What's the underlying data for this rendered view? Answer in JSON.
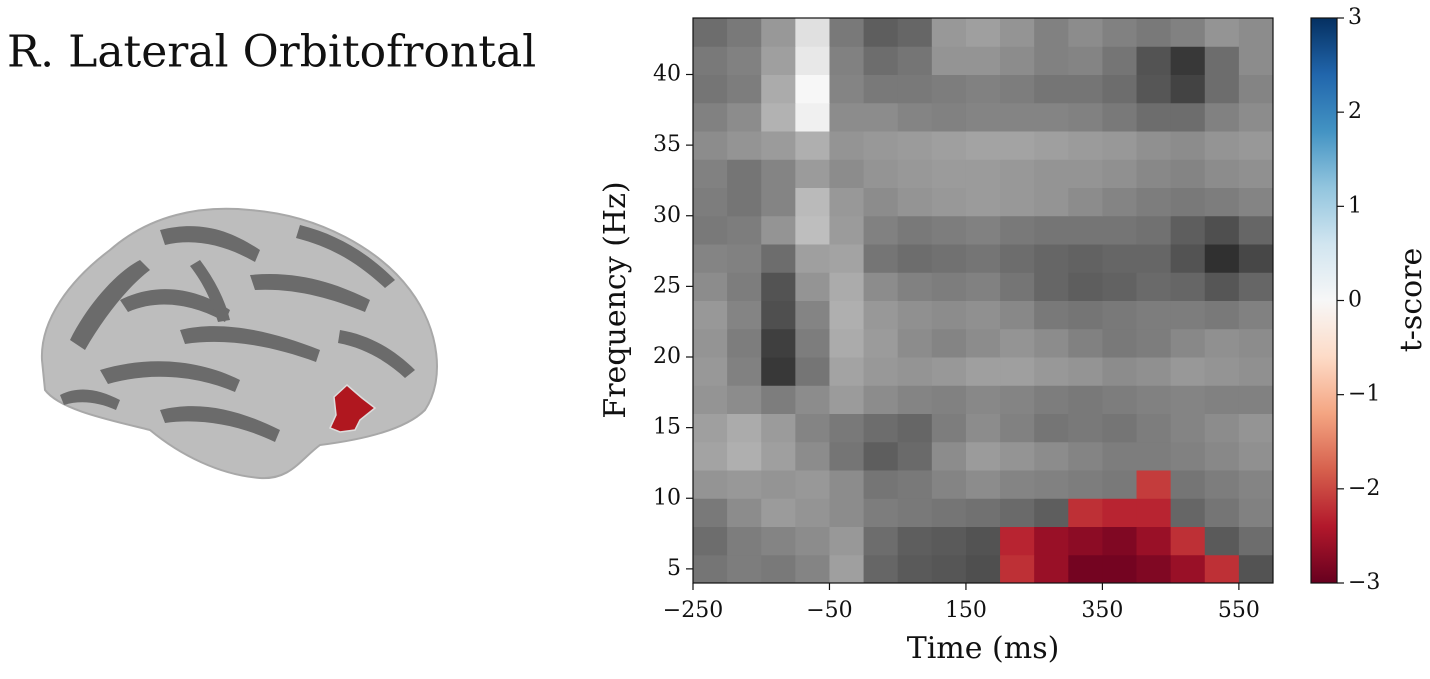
{
  "chart_data": {
    "type": "heatmap",
    "title": "R. Lateral Orbitofrontal",
    "x_label": "Time (ms)",
    "y_label": "Frequency (Hz)",
    "xlim": [
      -250,
      600
    ],
    "ylim": [
      4,
      44
    ],
    "xticks": [
      {
        "value": -250,
        "label": "−250"
      },
      {
        "value": -50,
        "label": "−50"
      },
      150,
      350,
      550
    ],
    "yticks": [
      5,
      10,
      15,
      20,
      25,
      30,
      35,
      40
    ],
    "x_bins": [
      -250,
      -200,
      -150,
      -100,
      -50,
      0,
      50,
      100,
      150,
      200,
      250,
      300,
      350,
      400,
      450,
      500,
      550,
      600
    ],
    "y_bins": [
      4,
      6,
      8,
      10,
      12,
      14,
      16,
      18,
      20,
      22,
      24,
      26,
      28,
      30,
      32,
      34,
      36,
      38,
      40,
      42,
      44
    ],
    "values": [
      [
        -0.6,
        -0.4,
        -0.5,
        -0.2,
        0.5,
        -1.0,
        -1.3,
        -1.4,
        -1.6,
        -2.2,
        -2.6,
        -2.9,
        -2.9,
        -2.8,
        -2.6,
        -2.2,
        -1.5
      ],
      [
        -0.8,
        -0.4,
        -0.2,
        0.0,
        0.3,
        -0.8,
        -1.2,
        -1.3,
        -1.5,
        -2.3,
        -2.6,
        -2.7,
        -2.8,
        -2.6,
        -2.2,
        -1.3,
        -0.8
      ],
      [
        -0.5,
        0.0,
        0.4,
        0.2,
        0.0,
        -0.4,
        -0.5,
        -0.6,
        -0.7,
        -0.9,
        -1.2,
        -2.2,
        -2.3,
        -2.3,
        -1.0,
        -0.6,
        -0.3
      ],
      [
        0.2,
        0.3,
        0.2,
        0.3,
        0.0,
        -0.6,
        -0.5,
        -0.2,
        0.0,
        -0.2,
        -0.3,
        -0.4,
        -0.5,
        -2.1,
        -0.6,
        -0.4,
        -0.2
      ],
      [
        0.6,
        0.9,
        0.5,
        0.0,
        -0.6,
        -1.2,
        -0.9,
        0.0,
        0.4,
        0.2,
        0.0,
        -0.2,
        -0.4,
        -0.4,
        -0.3,
        -0.1,
        0.1
      ],
      [
        0.5,
        0.8,
        0.4,
        -0.2,
        -0.5,
        -0.8,
        -1.0,
        -0.4,
        0.0,
        -0.3,
        -0.6,
        -0.5,
        -0.6,
        -0.4,
        -0.2,
        0.0,
        0.2
      ],
      [
        0.2,
        0.0,
        -0.4,
        0.0,
        0.4,
        0.0,
        -0.2,
        -0.3,
        -0.1,
        -0.2,
        -0.4,
        -0.5,
        -0.4,
        -0.3,
        -0.2,
        -0.3,
        -0.3
      ],
      [
        0.3,
        -0.3,
        -2.2,
        -0.6,
        0.6,
        0.3,
        0.2,
        0.3,
        0.5,
        0.5,
        0.3,
        0.2,
        0.0,
        0.1,
        0.3,
        0.2,
        0.1
      ],
      [
        0.2,
        -0.4,
        -2.0,
        -0.4,
        0.8,
        0.4,
        0.0,
        -0.2,
        0.0,
        0.2,
        0.0,
        -0.3,
        -0.5,
        -0.4,
        -0.1,
        0.1,
        0.0
      ],
      [
        0.3,
        -0.2,
        -1.6,
        -0.2,
        0.9,
        0.3,
        0.1,
        0.0,
        0.1,
        -0.1,
        -0.5,
        -0.6,
        -0.5,
        -0.4,
        -0.4,
        -0.5,
        -0.3
      ],
      [
        0.0,
        -0.4,
        -1.5,
        0.2,
        0.8,
        0.0,
        -0.3,
        -0.4,
        -0.3,
        -0.6,
        -1.0,
        -1.2,
        -1.1,
        -0.9,
        -1.0,
        -1.4,
        -1.0
      ],
      [
        -0.2,
        -0.3,
        -0.8,
        0.5,
        0.6,
        -0.6,
        -0.8,
        -0.7,
        -0.6,
        -0.8,
        -1.0,
        -1.1,
        -1.0,
        -1.0,
        -1.5,
        -2.4,
        -1.8
      ],
      [
        -0.5,
        -0.4,
        0.2,
        1.3,
        0.4,
        -0.3,
        -0.5,
        -0.4,
        -0.3,
        -0.5,
        -0.6,
        -0.6,
        -0.6,
        -0.7,
        -1.2,
        -1.6,
        -1.0
      ],
      [
        -0.4,
        -0.6,
        -0.2,
        1.2,
        0.3,
        0.0,
        0.2,
        0.3,
        0.4,
        0.3,
        0.2,
        0.0,
        -0.2,
        -0.4,
        -0.5,
        -0.4,
        -0.2
      ],
      [
        -0.3,
        -0.6,
        -0.2,
        0.4,
        0.0,
        0.2,
        0.3,
        0.4,
        0.4,
        0.3,
        0.2,
        0.2,
        0.1,
        -0.1,
        -0.2,
        0.0,
        0.1
      ],
      [
        0.0,
        0.2,
        0.4,
        0.9,
        0.2,
        0.3,
        0.4,
        0.5,
        0.6,
        0.6,
        0.5,
        0.4,
        0.3,
        0.1,
        0.0,
        0.2,
        0.3
      ],
      [
        -0.3,
        0.0,
        1.0,
        2.6,
        0.0,
        0.0,
        -0.2,
        -0.3,
        -0.2,
        -0.2,
        -0.2,
        -0.3,
        -0.5,
        -0.8,
        -0.8,
        -0.3,
        0.0
      ],
      [
        -0.6,
        -0.4,
        0.8,
        2.8,
        -0.2,
        -0.5,
        -0.5,
        -0.4,
        -0.3,
        -0.4,
        -0.6,
        -0.6,
        -0.8,
        -1.4,
        -1.9,
        -0.8,
        -0.2
      ],
      [
        -0.5,
        -0.3,
        0.5,
        2.4,
        -0.3,
        -0.8,
        -0.6,
        0.2,
        0.2,
        0.0,
        -0.3,
        -0.2,
        -0.6,
        -1.5,
        -2.2,
        -0.8,
        0.0
      ],
      [
        -0.8,
        -0.5,
        0.3,
        2.2,
        -0.5,
        -1.2,
        -1.0,
        0.3,
        0.5,
        0.2,
        -0.3,
        0.0,
        -0.3,
        -0.5,
        -0.3,
        0.2,
        0.0
      ]
    ],
    "significant_cells": [
      [
        0,
        9
      ],
      [
        0,
        10
      ],
      [
        0,
        11
      ],
      [
        0,
        12
      ],
      [
        0,
        13
      ],
      [
        0,
        14
      ],
      [
        0,
        15
      ],
      [
        1,
        9
      ],
      [
        1,
        10
      ],
      [
        1,
        11
      ],
      [
        1,
        12
      ],
      [
        1,
        13
      ],
      [
        1,
        14
      ],
      [
        2,
        11
      ],
      [
        2,
        12
      ],
      [
        2,
        13
      ],
      [
        3,
        13
      ]
    ],
    "colorbar": {
      "label": "t-score",
      "lim": [
        -3,
        3
      ],
      "ticks": [
        {
          "value": -3,
          "label": "−3"
        },
        {
          "value": -2,
          "label": "−2"
        },
        {
          "value": -1,
          "label": "−1"
        },
        0,
        1,
        2,
        3
      ],
      "colormap": [
        "#67001f",
        "#b2182b",
        "#d6604d",
        "#f4a582",
        "#fddbc7",
        "#f7f7f7",
        "#d1e5f0",
        "#92c5de",
        "#4393c3",
        "#2166ac",
        "#053061"
      ]
    }
  }
}
